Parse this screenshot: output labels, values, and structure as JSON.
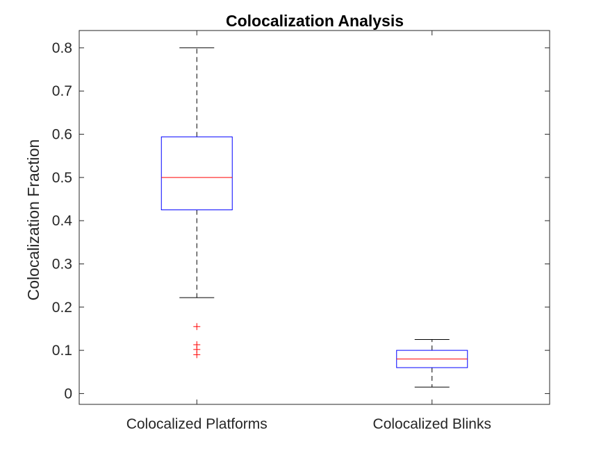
{
  "chart_data": {
    "type": "box",
    "title": "Colocalization Analysis",
    "xlabel": "",
    "ylabel": "Colocalization Fraction",
    "ylim": [
      -0.025,
      0.84
    ],
    "yticks": [
      0,
      0.1,
      0.2,
      0.3,
      0.4,
      0.5,
      0.6,
      0.7,
      0.8
    ],
    "ytick_labels": [
      "0",
      "0.1",
      "0.2",
      "0.3",
      "0.4",
      "0.5",
      "0.6",
      "0.7",
      "0.8"
    ],
    "categories": [
      "Colocalized Platforms",
      "Colocalized Blinks"
    ],
    "boxes": [
      {
        "category": "Colocalized Platforms",
        "whisker_low": 0.222,
        "q1": 0.425,
        "median": 0.5,
        "q3": 0.594,
        "whisker_high": 0.8,
        "outliers": [
          0.155,
          0.113,
          0.102,
          0.09
        ]
      },
      {
        "category": "Colocalized Blinks",
        "whisker_low": 0.015,
        "q1": 0.06,
        "median": 0.08,
        "q3": 0.1,
        "whisker_high": 0.125,
        "outliers": []
      }
    ],
    "grid": false,
    "colors": {
      "box": "#0000ff",
      "median": "#ff0000",
      "whisker": "#000000",
      "outlier": "#ff0000",
      "axes": "#262626"
    }
  }
}
